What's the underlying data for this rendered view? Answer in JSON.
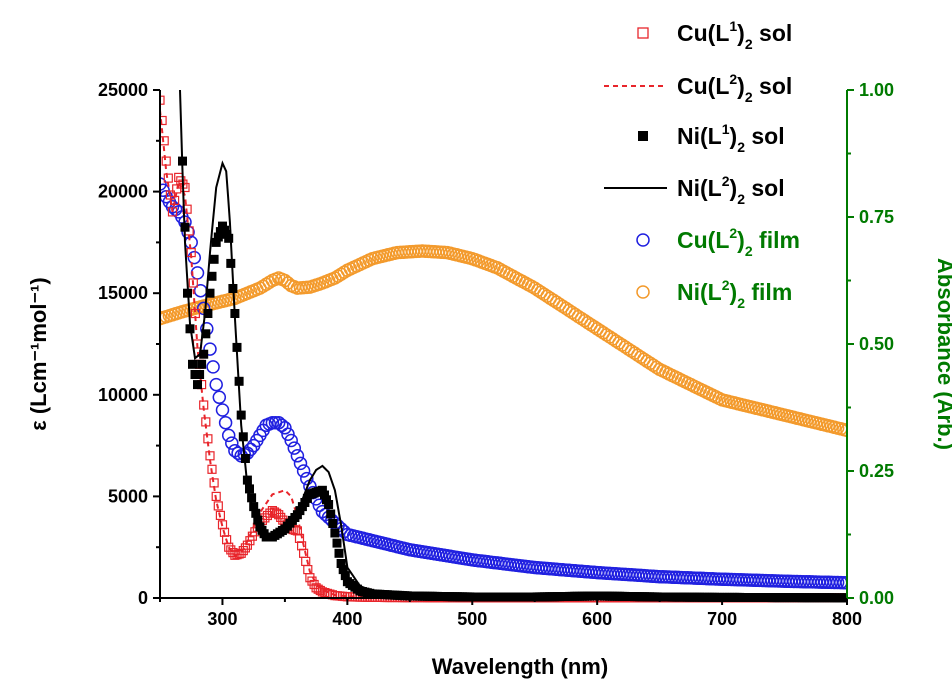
{
  "chart_data": {
    "type": "line",
    "xlabel": "Wavelength (nm)",
    "ylabel_left": "ε (Lcm⁻¹mol⁻¹)",
    "ylabel_right": "Absorbance (Arb.)",
    "xlim": [
      250,
      800
    ],
    "ylim_left": [
      0,
      25000
    ],
    "ylim_right": [
      0,
      1
    ],
    "x_ticks": [
      "300",
      "400",
      "500",
      "600",
      "700",
      "800"
    ],
    "yleft_ticks": [
      "0",
      "5000",
      "10000",
      "15000",
      "20000",
      "25000"
    ],
    "yright_ticks": [
      "0.00",
      "0.25",
      "0.50",
      "0.75",
      "1.00"
    ],
    "legend_position": "top-right",
    "right_axis_color": "#007a00",
    "series": [
      {
        "name": "Cu(L1)2 sol",
        "axis": "left",
        "style": "open-square",
        "color": "#e8252b",
        "x": [
          250,
          255,
          260,
          265,
          270,
          275,
          280,
          285,
          290,
          295,
          300,
          305,
          310,
          315,
          320,
          330,
          340,
          345,
          350,
          355,
          360,
          365,
          370,
          375,
          380,
          390,
          400,
          420,
          450,
          500,
          600,
          700,
          800
        ],
        "y": [
          24500,
          21500,
          19000,
          20700,
          20200,
          17000,
          12500,
          9500,
          7000,
          5000,
          3600,
          2500,
          2100,
          2200,
          2600,
          3700,
          4300,
          4100,
          3700,
          3400,
          3300,
          2200,
          1000,
          500,
          300,
          120,
          60,
          30,
          20,
          10,
          10,
          5,
          5
        ]
      },
      {
        "name": "Cu(L2)2 sol",
        "axis": "left",
        "style": "dashed",
        "color": "#e8252b",
        "x": [
          250,
          255,
          260,
          265,
          270,
          275,
          280,
          285,
          290,
          295,
          300,
          305,
          310,
          315,
          320,
          330,
          340,
          350,
          355,
          360,
          365,
          370,
          375,
          380,
          390,
          400,
          420,
          450,
          500,
          600,
          700,
          800
        ],
        "y": [
          24000,
          21000,
          19000,
          20500,
          19800,
          16800,
          12300,
          9300,
          6800,
          4800,
          3500,
          2500,
          2100,
          2200,
          2800,
          4200,
          5100,
          5300,
          5000,
          4000,
          2600,
          1300,
          700,
          400,
          150,
          80,
          40,
          30,
          20,
          10,
          5,
          5
        ]
      },
      {
        "name": "Ni(L1)2 sol",
        "axis": "left",
        "style": "filled-square",
        "color": "#000000",
        "x": [
          268,
          272,
          276,
          280,
          285,
          290,
          295,
          300,
          305,
          310,
          315,
          320,
          325,
          330,
          335,
          340,
          350,
          360,
          370,
          375,
          380,
          385,
          390,
          395,
          400,
          410,
          420,
          450,
          500,
          550,
          600,
          650,
          700,
          750,
          800
        ],
        "y": [
          21500,
          15000,
          11500,
          10500,
          12000,
          15000,
          17500,
          18300,
          17700,
          14000,
          9000,
          5800,
          4500,
          3500,
          3000,
          3000,
          3400,
          4100,
          5100,
          5200,
          5300,
          4600,
          3200,
          1700,
          800,
          350,
          200,
          100,
          50,
          50,
          100,
          50,
          30,
          20,
          10
        ]
      },
      {
        "name": "Ni(L2)2 sol",
        "axis": "left",
        "style": "line",
        "color": "#000000",
        "x": [
          266,
          268,
          270,
          274,
          278,
          282,
          286,
          290,
          295,
          300,
          303,
          306,
          310,
          315,
          320,
          325,
          330,
          340,
          350,
          360,
          370,
          375,
          380,
          385,
          390,
          395,
          400,
          410,
          420,
          450,
          500,
          550,
          600,
          650,
          700,
          750,
          800
        ],
        "y": [
          25000,
          21000,
          17500,
          13500,
          11800,
          12000,
          14000,
          17000,
          20200,
          21400,
          21000,
          18500,
          13800,
          8500,
          5500,
          4200,
          3300,
          3000,
          3300,
          4200,
          5800,
          6300,
          6500,
          6200,
          5300,
          3600,
          1500,
          600,
          300,
          150,
          80,
          60,
          150,
          100,
          50,
          30,
          20
        ]
      },
      {
        "name": "Cu(L2)2 film",
        "axis": "right",
        "style": "open-circle",
        "color": "#2020e0",
        "x": [
          250,
          255,
          260,
          265,
          270,
          275,
          280,
          285,
          290,
          295,
          300,
          305,
          310,
          315,
          320,
          325,
          330,
          335,
          340,
          345,
          350,
          355,
          360,
          365,
          370,
          380,
          400,
          450,
          500,
          550,
          600,
          650,
          700,
          750,
          800
        ],
        "y": [
          0.815,
          0.79,
          0.77,
          0.76,
          0.74,
          0.7,
          0.64,
          0.57,
          0.49,
          0.42,
          0.37,
          0.32,
          0.29,
          0.28,
          0.285,
          0.3,
          0.32,
          0.34,
          0.345,
          0.345,
          0.335,
          0.31,
          0.28,
          0.25,
          0.22,
          0.17,
          0.125,
          0.095,
          0.075,
          0.06,
          0.05,
          0.042,
          0.037,
          0.033,
          0.03
        ]
      },
      {
        "name": "Ni(L2)2 film",
        "axis": "right",
        "style": "open-circle",
        "color": "#f39a2c",
        "x": [
          250,
          270,
          290,
          310,
          330,
          340,
          345,
          350,
          355,
          360,
          370,
          380,
          390,
          400,
          420,
          440,
          460,
          480,
          500,
          520,
          550,
          600,
          650,
          700,
          750,
          800
        ],
        "y": [
          0.55,
          0.565,
          0.578,
          0.59,
          0.61,
          0.625,
          0.63,
          0.625,
          0.615,
          0.61,
          0.612,
          0.62,
          0.63,
          0.645,
          0.668,
          0.68,
          0.683,
          0.68,
          0.668,
          0.65,
          0.61,
          0.53,
          0.45,
          0.39,
          0.36,
          0.33
        ]
      }
    ]
  },
  "legend": [
    {
      "pre": "Cu(L",
      "sup": "1",
      "post": ")",
      "sub": "2",
      "tail": " sol",
      "style": "open-square",
      "color": "#e8252b",
      "text_color": "#000000"
    },
    {
      "pre": "Cu(L",
      "sup": "2",
      "post": ")",
      "sub": "2",
      "tail": " sol",
      "style": "dashed",
      "color": "#e8252b",
      "text_color": "#000000"
    },
    {
      "pre": "Ni(L",
      "sup": "1",
      "post": ")",
      "sub": "2",
      "tail": " sol",
      "style": "filled-square",
      "color": "#000000",
      "text_color": "#000000"
    },
    {
      "pre": "Ni(L",
      "sup": "2",
      "post": ")",
      "sub": "2",
      "tail": " sol",
      "style": "line",
      "color": "#000000",
      "text_color": "#000000"
    },
    {
      "pre": "Cu(L",
      "sup": "2",
      "post": ")",
      "sub": "2",
      "tail": " film",
      "style": "open-circle",
      "color": "#2020e0",
      "text_color": "#007a00"
    },
    {
      "pre": "Ni(L",
      "sup": "2",
      "post": ")",
      "sub": "2",
      "tail": " film",
      "style": "open-circle",
      "color": "#f39a2c",
      "text_color": "#007a00"
    }
  ]
}
